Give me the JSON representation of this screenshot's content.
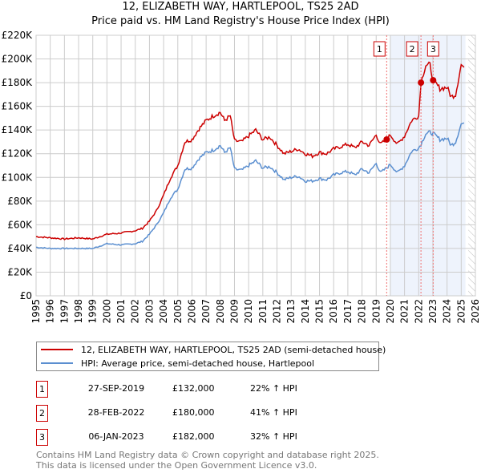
{
  "chart_data": {
    "type": "line",
    "title": "12, ELIZABETH WAY, HARTLEPOOL, TS25 2AD",
    "subtitle": "Price paid vs. HM Land Registry's House Price Index (HPI)",
    "xlabel": "",
    "ylabel": "",
    "xlim": [
      1995,
      2026
    ],
    "ylim": [
      0,
      220000
    ],
    "x_ticks": [
      "1995",
      "1996",
      "1997",
      "1998",
      "1999",
      "2000",
      "2001",
      "2002",
      "2003",
      "2004",
      "2005",
      "2006",
      "2007",
      "2008",
      "2009",
      "2010",
      "2011",
      "2012",
      "2013",
      "2014",
      "2015",
      "2016",
      "2017",
      "2018",
      "2019",
      "2020",
      "2021",
      "2022",
      "2023",
      "2024",
      "2025",
      "2026"
    ],
    "y_ticks": [
      {
        "v": 0,
        "label": "£0"
      },
      {
        "v": 20000,
        "label": "£20K"
      },
      {
        "v": 40000,
        "label": "£40K"
      },
      {
        "v": 60000,
        "label": "£60K"
      },
      {
        "v": 80000,
        "label": "£80K"
      },
      {
        "v": 100000,
        "label": "£100K"
      },
      {
        "v": 120000,
        "label": "£120K"
      },
      {
        "v": 140000,
        "label": "£140K"
      },
      {
        "v": 160000,
        "label": "£160K"
      },
      {
        "v": 180000,
        "label": "£180K"
      },
      {
        "v": 200000,
        "label": "£200K"
      },
      {
        "v": 220000,
        "label": "£220K"
      }
    ],
    "grid": true,
    "shaded_range": [
      2020.0,
      2025.3
    ],
    "forecast_hatch_from": 2025.5,
    "x": [
      1995,
      1996,
      1997,
      1998,
      1999,
      2000,
      2001,
      2002,
      2002.5,
      2003,
      2003.5,
      2004,
      2004.5,
      2005,
      2005.5,
      2006,
      2006.5,
      2007,
      2007.5,
      2008,
      2008.3,
      2008.7,
      2009,
      2009.5,
      2010,
      2010.5,
      2011,
      2011.5,
      2012,
      2012.5,
      2013,
      2013.5,
      2014,
      2014.5,
      2015,
      2015.5,
      2016,
      2016.5,
      2017,
      2017.5,
      2018,
      2018.5,
      2019,
      2019.3,
      2019.74,
      2020,
      2020.5,
      2021,
      2021.5,
      2022,
      2022.16,
      2022.5,
      2022.8,
      2023.02,
      2023.5,
      2024,
      2024.3,
      2024.6,
      2025,
      2025.2
    ],
    "series": [
      {
        "name": "12, ELIZABETH WAY, HARTLEPOOL, TS25 2AD (semi-detached house)",
        "color": "#cc0000",
        "values": [
          50000,
          49000,
          48000,
          49000,
          48000,
          52000,
          53000,
          55000,
          57000,
          63000,
          72000,
          85000,
          100000,
          110000,
          130000,
          132000,
          141000,
          148000,
          152000,
          155000,
          148000,
          152000,
          131000,
          130000,
          135000,
          140000,
          132000,
          134000,
          127000,
          120000,
          122000,
          124000,
          120000,
          118000,
          121000,
          120000,
          124000,
          126000,
          128000,
          125000,
          130000,
          127000,
          136000,
          128000,
          132000,
          136000,
          128000,
          135000,
          148000,
          152000,
          180000,
          195000,
          195000,
          182000,
          175000,
          176000,
          168000,
          170000,
          195000,
          193000
        ]
      },
      {
        "name": "HPI: Average price, semi-detached house, Hartlepool",
        "color": "#5b8fd0",
        "values": [
          41000,
          40000,
          40000,
          40000,
          40000,
          44000,
          43000,
          44000,
          46000,
          52000,
          60000,
          70000,
          83000,
          90000,
          107000,
          108000,
          116000,
          121000,
          123000,
          127000,
          121000,
          125000,
          107000,
          106000,
          110000,
          114000,
          108000,
          109000,
          104000,
          98000,
          100000,
          101000,
          97000,
          97000,
          99000,
          98000,
          102000,
          104000,
          105000,
          102000,
          107000,
          104000,
          112000,
          104000,
          108000,
          111000,
          104000,
          110000,
          122000,
          125000,
          128000,
          137000,
          138000,
          137000,
          132000,
          133000,
          127000,
          130000,
          145000,
          146000
        ]
      }
    ],
    "sales": [
      {
        "label": "1",
        "x": 2019.74,
        "value": 132000,
        "date": "27-SEP-2019",
        "price": "£132,000",
        "hpi": "22% ↑ HPI"
      },
      {
        "label": "2",
        "x": 2022.16,
        "value": 180000,
        "date": "28-FEB-2022",
        "price": "£180,000",
        "hpi": "41% ↑ HPI"
      },
      {
        "label": "3",
        "x": 2023.02,
        "value": 182000,
        "date": "06-JAN-2023",
        "price": "£182,000",
        "hpi": "32% ↑ HPI"
      }
    ]
  },
  "legend": {
    "property": "12, ELIZABETH WAY, HARTLEPOOL, TS25 2AD (semi-detached house)",
    "hpi": "HPI: Average price, semi-detached house, Hartlepool"
  },
  "footer": {
    "line1": "Contains HM Land Registry data © Crown copyright and database right 2025.",
    "line2": "This data is licensed under the Open Government Licence v3.0."
  }
}
